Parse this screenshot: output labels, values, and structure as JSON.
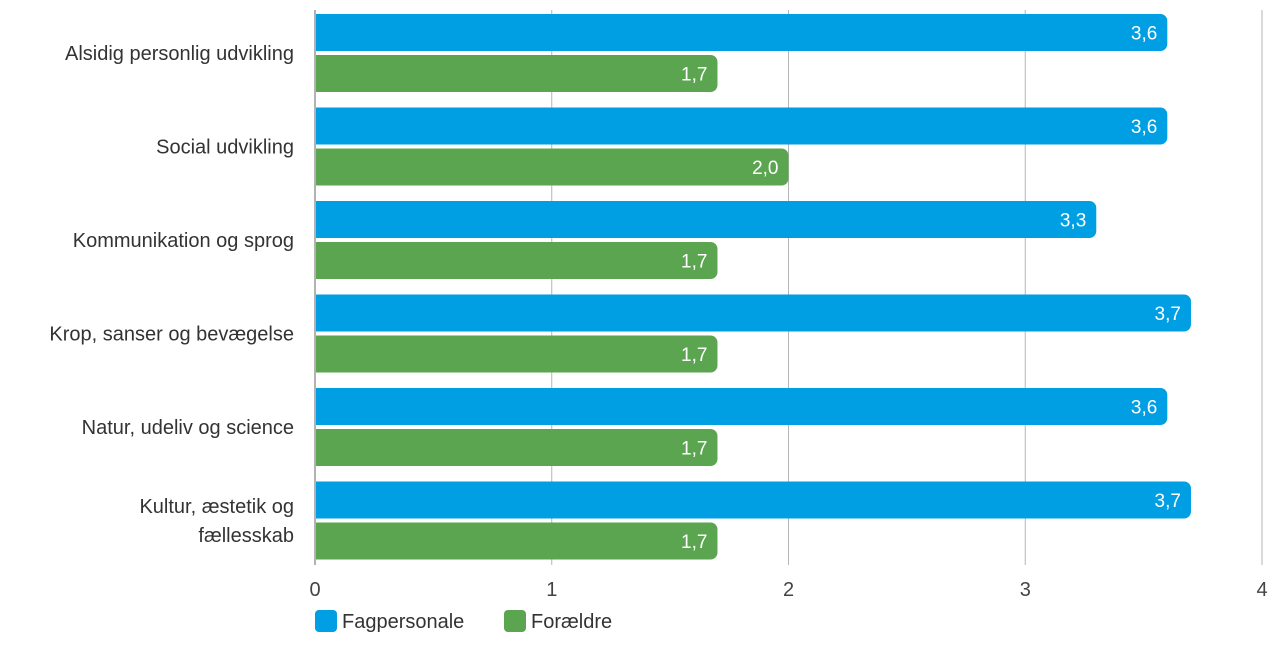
{
  "chart_data": {
    "type": "bar",
    "orientation": "horizontal",
    "categories": [
      [
        "Alsidig personlig udvikling"
      ],
      [
        "Social udvikling"
      ],
      [
        "Kommunikation og sprog"
      ],
      [
        "Krop, sanser og bevægelse"
      ],
      [
        "Natur, udeliv og science"
      ],
      [
        "Kultur, æstetik og",
        "fællesskab"
      ]
    ],
    "series": [
      {
        "name": "Fagpersonale",
        "color": "#009fe3",
        "values": [
          3.6,
          3.6,
          3.3,
          3.7,
          3.6,
          3.7
        ],
        "labels": [
          "3,6",
          "3,6",
          "3,3",
          "3,7",
          "3,6",
          "3,7"
        ]
      },
      {
        "name": "Forældre",
        "color": "#5ba551",
        "values": [
          1.7,
          2.0,
          1.7,
          1.7,
          1.7,
          1.7
        ],
        "labels": [
          "1,7",
          "2,0",
          "1,7",
          "1,7",
          "1,7",
          "1,7"
        ]
      }
    ],
    "xlim": [
      0,
      4
    ],
    "xticks": [
      0,
      1,
      2,
      3,
      4
    ],
    "xticklabels": [
      "0",
      "1",
      "2",
      "3",
      "4"
    ],
    "grid": true,
    "legend": "bottom-left"
  }
}
